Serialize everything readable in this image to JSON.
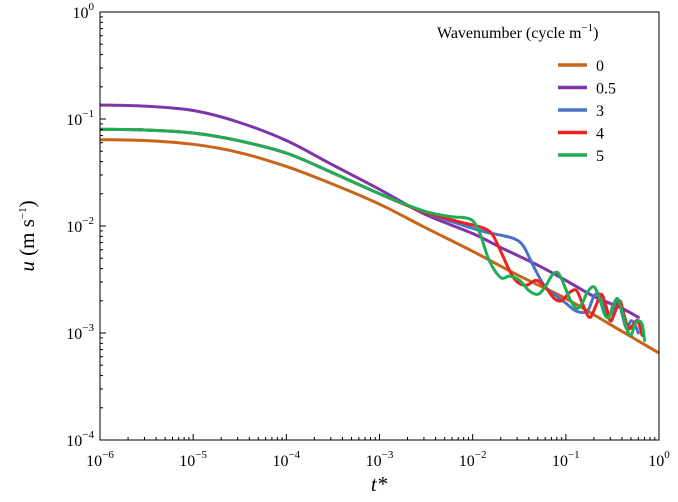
{
  "chart_data": {
    "type": "line",
    "title": "",
    "xlabel": "t*",
    "ylabel": "u (m s−1)",
    "xscale": "log",
    "yscale": "log",
    "xlim": [
      1e-06,
      1
    ],
    "ylim": [
      0.0001,
      1
    ],
    "grid": false,
    "legend_position": "top-right",
    "legend_title": "Wavenumber (cycle m−1)",
    "x_ticks": [
      {
        "base": "10",
        "exp": "−6"
      },
      {
        "base": "10",
        "exp": "−5"
      },
      {
        "base": "10",
        "exp": "−4"
      },
      {
        "base": "10",
        "exp": "−3"
      },
      {
        "base": "10",
        "exp": "−2"
      },
      {
        "base": "10",
        "exp": "−1"
      },
      {
        "base": "10",
        "exp": "0"
      }
    ],
    "y_ticks": [
      {
        "base": "10",
        "exp": "−4"
      },
      {
        "base": "10",
        "exp": "−3"
      },
      {
        "base": "10",
        "exp": "−2"
      },
      {
        "base": "10",
        "exp": "−1"
      },
      {
        "base": "10",
        "exp": "0"
      }
    ],
    "series": [
      {
        "name": "0",
        "color": "#c8651b",
        "points": [
          [
            1e-06,
            0.064
          ],
          [
            3e-06,
            0.063
          ],
          [
            1e-05,
            0.058
          ],
          [
            3e-05,
            0.049
          ],
          [
            0.0001,
            0.036
          ],
          [
            0.0003,
            0.025
          ],
          [
            0.001,
            0.016
          ],
          [
            0.003,
            0.0098
          ],
          [
            0.01,
            0.0058
          ],
          [
            0.03,
            0.0035
          ],
          [
            0.1,
            0.0021
          ],
          [
            0.3,
            0.0012
          ],
          [
            1,
            0.00065
          ]
        ]
      },
      {
        "name": "0.5",
        "color": "#7d35a8",
        "points": [
          [
            1e-06,
            0.135
          ],
          [
            3e-06,
            0.132
          ],
          [
            1e-05,
            0.12
          ],
          [
            3e-05,
            0.094
          ],
          [
            0.0001,
            0.063
          ],
          [
            0.0003,
            0.038
          ],
          [
            0.001,
            0.022
          ],
          [
            0.003,
            0.013
          ],
          [
            0.01,
            0.0085
          ],
          [
            0.02,
            0.0063
          ],
          [
            0.05,
            0.0043
          ],
          [
            0.1,
            0.0031
          ],
          [
            0.2,
            0.0022
          ],
          [
            0.4,
            0.0017
          ],
          [
            0.6,
            0.0014
          ]
        ]
      },
      {
        "name": "3",
        "color": "#4b72c4",
        "points": [
          [
            1e-06,
            0.08
          ],
          [
            3e-06,
            0.079
          ],
          [
            1e-05,
            0.074
          ],
          [
            3e-05,
            0.063
          ],
          [
            0.0001,
            0.048
          ],
          [
            0.0003,
            0.032
          ],
          [
            0.001,
            0.02
          ],
          [
            0.003,
            0.0135
          ],
          [
            0.007,
            0.0105
          ],
          [
            0.013,
            0.0089
          ],
          [
            0.02,
            0.0082
          ],
          [
            0.028,
            0.0076
          ],
          [
            0.035,
            0.0065
          ],
          [
            0.045,
            0.0042
          ],
          [
            0.06,
            0.0027
          ],
          [
            0.08,
            0.0022
          ],
          [
            0.1,
            0.0019
          ],
          [
            0.13,
            0.0016
          ],
          [
            0.17,
            0.0016
          ],
          [
            0.2,
            0.0022
          ],
          [
            0.23,
            0.0023
          ],
          [
            0.27,
            0.0016
          ],
          [
            0.31,
            0.0013
          ],
          [
            0.34,
            0.0019
          ],
          [
            0.37,
            0.002
          ],
          [
            0.41,
            0.0014
          ],
          [
            0.45,
            0.0011
          ],
          [
            0.5,
            0.0013
          ],
          [
            0.55,
            0.0012
          ],
          [
            0.6,
            0.001
          ]
        ]
      },
      {
        "name": "4",
        "color": "#e8231f",
        "points": [
          [
            1e-06,
            0.08
          ],
          [
            3e-06,
            0.079
          ],
          [
            1e-05,
            0.074
          ],
          [
            3e-05,
            0.063
          ],
          [
            0.0001,
            0.048
          ],
          [
            0.0003,
            0.032
          ],
          [
            0.001,
            0.02
          ],
          [
            0.003,
            0.0135
          ],
          [
            0.007,
            0.011
          ],
          [
            0.012,
            0.0098
          ],
          [
            0.016,
            0.0085
          ],
          [
            0.02,
            0.0058
          ],
          [
            0.025,
            0.0038
          ],
          [
            0.03,
            0.003
          ],
          [
            0.038,
            0.0028
          ],
          [
            0.048,
            0.0031
          ],
          [
            0.06,
            0.0027
          ],
          [
            0.075,
            0.0021
          ],
          [
            0.09,
            0.002
          ],
          [
            0.11,
            0.0024
          ],
          [
            0.13,
            0.0025
          ],
          [
            0.15,
            0.0019
          ],
          [
            0.18,
            0.0014
          ],
          [
            0.21,
            0.0018
          ],
          [
            0.24,
            0.0023
          ],
          [
            0.27,
            0.0018
          ],
          [
            0.3,
            0.0013
          ],
          [
            0.34,
            0.0016
          ],
          [
            0.38,
            0.002
          ],
          [
            0.42,
            0.0015
          ],
          [
            0.47,
            0.0011
          ],
          [
            0.53,
            0.0012
          ],
          [
            0.59,
            0.0013
          ],
          [
            0.66,
            0.00095
          ]
        ]
      },
      {
        "name": "5",
        "color": "#1fae55",
        "points": [
          [
            1e-06,
            0.08
          ],
          [
            3e-06,
            0.079
          ],
          [
            1e-05,
            0.074
          ],
          [
            3e-05,
            0.063
          ],
          [
            0.0001,
            0.048
          ],
          [
            0.0003,
            0.032
          ],
          [
            0.001,
            0.02
          ],
          [
            0.003,
            0.0138
          ],
          [
            0.006,
            0.0122
          ],
          [
            0.008,
            0.012
          ],
          [
            0.01,
            0.0112
          ],
          [
            0.012,
            0.0085
          ],
          [
            0.015,
            0.0048
          ],
          [
            0.02,
            0.0033
          ],
          [
            0.025,
            0.0034
          ],
          [
            0.032,
            0.0031
          ],
          [
            0.04,
            0.0025
          ],
          [
            0.05,
            0.0023
          ],
          [
            0.06,
            0.0027
          ],
          [
            0.07,
            0.0034
          ],
          [
            0.08,
            0.0037
          ],
          [
            0.09,
            0.0032
          ],
          [
            0.11,
            0.0021
          ],
          [
            0.13,
            0.0017
          ],
          [
            0.15,
            0.0019
          ],
          [
            0.17,
            0.0024
          ],
          [
            0.2,
            0.0027
          ],
          [
            0.23,
            0.0021
          ],
          [
            0.26,
            0.0015
          ],
          [
            0.29,
            0.0014
          ],
          [
            0.32,
            0.0018
          ],
          [
            0.36,
            0.0021
          ],
          [
            0.4,
            0.0016
          ],
          [
            0.45,
            0.0011
          ],
          [
            0.5,
            0.00095
          ],
          [
            0.55,
            0.0012
          ],
          [
            0.6,
            0.0013
          ],
          [
            0.66,
            0.0012
          ],
          [
            0.7,
            0.00085
          ]
        ]
      }
    ]
  }
}
